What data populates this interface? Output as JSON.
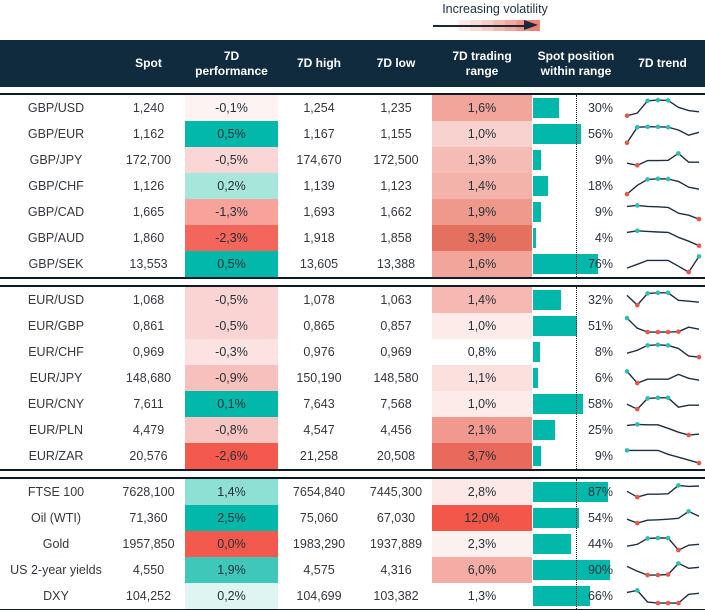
{
  "legend": {
    "label": "Increasing volatility"
  },
  "header": {
    "columns": [
      "",
      "Spot",
      "7D performance",
      "7D high",
      "7D low",
      "7D trading range",
      "Spot position within range",
      "7D trend"
    ]
  },
  "colors": {
    "header_bg": "#102A3E",
    "accent_teal": "#01B8AA",
    "negative_red": "#F4594E",
    "bar_fill": "#01B8AA",
    "sparkline_line": "#1F2E45",
    "marker_high_teal": "#2ABFAE",
    "marker_low_red": "#E5564B",
    "block_border": "#0F1C28"
  },
  "blocks": [
    {
      "rows": [
        {
          "name": "GBP/USD",
          "spot": "1,240",
          "perf": "-0,1%",
          "perf_color": "#FDF3F2",
          "high": "1,254",
          "low": "1,235",
          "range": "1,6%",
          "range_color": "#F1A59B",
          "position_pct": 30,
          "position_label": "30%",
          "trend": {
            "y": [
              0.12,
              0.25,
              0.88,
              0.92,
              0.9,
              0.55,
              0.38,
              0.32
            ],
            "m": [
              "r",
              "",
              "t",
              "t",
              "t",
              "",
              "",
              ""
            ]
          }
        },
        {
          "name": "GBP/EUR",
          "spot": "1,162",
          "perf": "0,5%",
          "perf_color": "#01B8AA",
          "high": "1,167",
          "low": "1,155",
          "range": "1,0%",
          "range_color": "#F7D2CE",
          "position_pct": 56,
          "position_label": "56%",
          "trend": {
            "y": [
              0.06,
              0.86,
              0.88,
              0.88,
              0.86,
              0.72,
              0.45,
              0.6
            ],
            "m": [
              "r",
              "t",
              "t",
              "t",
              "t",
              "",
              "",
              ""
            ]
          }
        },
        {
          "name": "GBP/JPY",
          "spot": "172,700",
          "perf": "-0,5%",
          "perf_color": "#FAD7D6",
          "high": "174,670",
          "low": "172,500",
          "range": "1,3%",
          "range_color": "#F4BCB4",
          "position_pct": 9,
          "position_label": "9%",
          "trend": {
            "y": [
              0.35,
              0.24,
              0.48,
              0.48,
              0.5,
              0.85,
              0.4,
              0.4
            ],
            "m": [
              "",
              "r",
              "",
              "",
              "",
              "t",
              "",
              ""
            ]
          }
        },
        {
          "name": "GBP/CHF",
          "spot": "1,126",
          "perf": "0,2%",
          "perf_color": "#A7E6DB",
          "high": "1,139",
          "low": "1,123",
          "range": "1,4%",
          "range_color": "#F3B3AA",
          "position_pct": 18,
          "position_label": "18%",
          "trend": {
            "y": [
              0.1,
              0.55,
              0.85,
              0.88,
              0.87,
              0.75,
              0.45,
              0.35
            ],
            "m": [
              "r",
              "",
              "t",
              "t",
              "t",
              "",
              "",
              ""
            ]
          }
        },
        {
          "name": "GBP/CAD",
          "spot": "1,665",
          "perf": "-1,3%",
          "perf_color": "#F7A39C",
          "high": "1,693",
          "low": "1,662",
          "range": "1,9%",
          "range_color": "#EF998D",
          "position_pct": 9,
          "position_label": "9%",
          "trend": {
            "y": [
              0.8,
              0.85,
              0.8,
              0.78,
              0.75,
              0.45,
              0.35,
              0.15
            ],
            "m": [
              "",
              "t",
              "",
              "",
              "",
              "",
              "",
              "r"
            ]
          }
        },
        {
          "name": "GBP/AUD",
          "spot": "1,860",
          "perf": "-2,3%",
          "perf_color": "#F4655C",
          "high": "1,918",
          "low": "1,858",
          "range": "3,3%",
          "range_color": "#E4705F",
          "position_pct": 4,
          "position_label": "4%",
          "trend": {
            "y": [
              0.8,
              0.88,
              0.85,
              0.82,
              0.8,
              0.55,
              0.35,
              0.12
            ],
            "m": [
              "",
              "t",
              "",
              "",
              "",
              "",
              "",
              "r"
            ]
          }
        },
        {
          "name": "GBP/SEK",
          "spot": "13,553",
          "perf": "0,5%",
          "perf_color": "#01B8AA",
          "high": "13,605",
          "low": "13,388",
          "range": "1,6%",
          "range_color": "#F1A59B",
          "position_pct": 76,
          "position_label": "76%",
          "trend": {
            "y": [
              0.3,
              0.5,
              0.7,
              0.7,
              0.7,
              0.4,
              0.1,
              0.9
            ],
            "m": [
              "",
              "",
              "",
              "",
              "",
              "",
              "r",
              "t"
            ]
          }
        }
      ]
    },
    {
      "rows": [
        {
          "name": "EUR/USD",
          "spot": "1,068",
          "perf": "-0,5%",
          "perf_color": "#FAD4D3",
          "high": "1,078",
          "low": "1,063",
          "range": "1,4%",
          "range_color": "#F6B8B2",
          "position_pct": 32,
          "position_label": "32%",
          "trend": {
            "y": [
              0.75,
              0.25,
              0.85,
              0.88,
              0.88,
              0.5,
              0.45,
              0.4
            ],
            "m": [
              "",
              "r",
              "t",
              "t",
              "t",
              "",
              "",
              ""
            ]
          }
        },
        {
          "name": "EUR/GBP",
          "spot": "0,861",
          "perf": "-0,5%",
          "perf_color": "#FAD4D3",
          "high": "0,865",
          "low": "0,857",
          "range": "1,0%",
          "range_color": "#FDEBEA",
          "position_pct": 51,
          "position_label": "51%",
          "trend": {
            "y": [
              0.92,
              0.4,
              0.2,
              0.2,
              0.2,
              0.22,
              0.45,
              0.35
            ],
            "m": [
              "t",
              "",
              "r",
              "r",
              "r",
              "r",
              "",
              ""
            ]
          }
        },
        {
          "name": "EUR/CHF",
          "spot": "0,969",
          "perf": "-0,3%",
          "perf_color": "#FCE3E2",
          "high": "0,976",
          "low": "0,969",
          "range": "0,8%",
          "range_color": "#FFFFFF",
          "position_pct": 8,
          "position_label": "8%",
          "trend": {
            "y": [
              0.45,
              0.6,
              0.85,
              0.88,
              0.85,
              0.7,
              0.3,
              0.25
            ],
            "m": [
              "",
              "",
              "t",
              "t",
              "t",
              "",
              "",
              "r"
            ]
          }
        },
        {
          "name": "EUR/JPY",
          "spot": "148,680",
          "perf": "-0,9%",
          "perf_color": "#F8C0BC",
          "high": "150,190",
          "low": "148,580",
          "range": "1,1%",
          "range_color": "#FBE0DE",
          "position_pct": 6,
          "position_label": "6%",
          "trend": {
            "y": [
              0.85,
              0.25,
              0.45,
              0.45,
              0.45,
              0.7,
              0.5,
              0.4
            ],
            "m": [
              "t",
              "r",
              "",
              "",
              "",
              "",
              "",
              ""
            ]
          }
        },
        {
          "name": "EUR/CNY",
          "spot": "7,611",
          "perf": "0,1%",
          "perf_color": "#01B8AA",
          "high": "7,643",
          "low": "7,568",
          "range": "1,0%",
          "range_color": "#FDEBEA",
          "position_pct": 58,
          "position_label": "58%",
          "trend": {
            "y": [
              0.5,
              0.25,
              0.8,
              0.83,
              0.83,
              0.35,
              0.45,
              0.45
            ],
            "m": [
              "",
              "r",
              "t",
              "t",
              "t",
              "",
              "",
              ""
            ]
          }
        },
        {
          "name": "EUR/PLN",
          "spot": "4,479",
          "perf": "-0,8%",
          "perf_color": "#F8C6C2",
          "high": "4,547",
          "low": "4,456",
          "range": "2,1%",
          "range_color": "#F1998F",
          "position_pct": 25,
          "position_label": "25%",
          "trend": {
            "y": [
              0.75,
              0.8,
              0.78,
              0.78,
              0.6,
              0.4,
              0.25,
              0.3
            ],
            "m": [
              "",
              "t",
              "",
              "",
              "",
              "",
              "r",
              ""
            ]
          }
        },
        {
          "name": "EUR/ZAR",
          "spot": "20,576",
          "perf": "-2,6%",
          "perf_color": "#F4594E",
          "high": "21,258",
          "low": "20,508",
          "range": "3,7%",
          "range_color": "#E9695C",
          "position_pct": 9,
          "position_label": "9%",
          "trend": {
            "y": [
              0.8,
              0.8,
              0.8,
              0.8,
              0.6,
              0.45,
              0.3,
              0.15
            ],
            "m": [
              "t",
              "",
              "",
              "",
              "",
              "",
              "",
              "r"
            ]
          }
        }
      ]
    },
    {
      "rows": [
        {
          "name": "FTSE 100",
          "spot": "7628,100",
          "perf": "1,4%",
          "perf_color": "#8FE0D4",
          "high": "7654,840",
          "low": "7445,300",
          "range": "2,8%",
          "range_color": "#FCE9E7",
          "position_pct": 87,
          "position_label": "87%",
          "trend": {
            "y": [
              0.55,
              0.25,
              0.4,
              0.4,
              0.42,
              0.85,
              0.8,
              0.82
            ],
            "m": [
              "",
              "r",
              "",
              "",
              "",
              "t",
              "",
              ""
            ]
          }
        },
        {
          "name": "Oil (WTI)",
          "spot": "71,360",
          "perf": "2,5%",
          "perf_color": "#01B8AA",
          "high": "75,060",
          "low": "67,030",
          "range": "12,0%",
          "range_color": "#F25749",
          "position_pct": 54,
          "position_label": "54%",
          "trend": {
            "y": [
              0.45,
              0.25,
              0.4,
              0.42,
              0.45,
              0.5,
              0.85,
              0.6
            ],
            "m": [
              "",
              "r",
              "",
              "",
              "",
              "",
              "t",
              ""
            ]
          }
        },
        {
          "name": "Gold",
          "spot": "1957,850",
          "perf": "0,0%",
          "perf_color": "#F4594E",
          "high": "1983,290",
          "low": "1937,889",
          "range": "2,3%",
          "range_color": "#FDF1F0",
          "position_pct": 44,
          "position_label": "44%",
          "trend": {
            "y": [
              0.4,
              0.5,
              0.8,
              0.82,
              0.82,
              0.2,
              0.45,
              0.5
            ],
            "m": [
              "",
              "",
              "t",
              "t",
              "t",
              "r",
              "",
              ""
            ]
          }
        },
        {
          "name": "US 2-year yields",
          "spot": "4,550",
          "perf": "1,9%",
          "perf_color": "#3FC8B9",
          "high": "4,575",
          "low": "4,316",
          "range": "6,0%",
          "range_color": "#F5ACA5",
          "position_pct": 90,
          "position_label": "90%",
          "trend": {
            "y": [
              0.7,
              0.45,
              0.25,
              0.25,
              0.28,
              0.85,
              0.6,
              0.65
            ],
            "m": [
              "",
              "",
              "r",
              "r",
              "r",
              "t",
              "",
              ""
            ]
          }
        },
        {
          "name": "DXY",
          "spot": "104,252",
          "perf": "0,2%",
          "perf_color": "#DFF5F2",
          "high": "104,699",
          "low": "103,382",
          "range": "1,3%",
          "range_color": "#FFFFFF",
          "position_pct": 66,
          "position_label": "66%",
          "trend": {
            "y": [
              0.7,
              0.8,
              0.2,
              0.15,
              0.15,
              0.15,
              0.6,
              0.65
            ],
            "m": [
              "",
              "t",
              "",
              "r",
              "r",
              "r",
              "",
              ""
            ]
          }
        }
      ]
    }
  ]
}
